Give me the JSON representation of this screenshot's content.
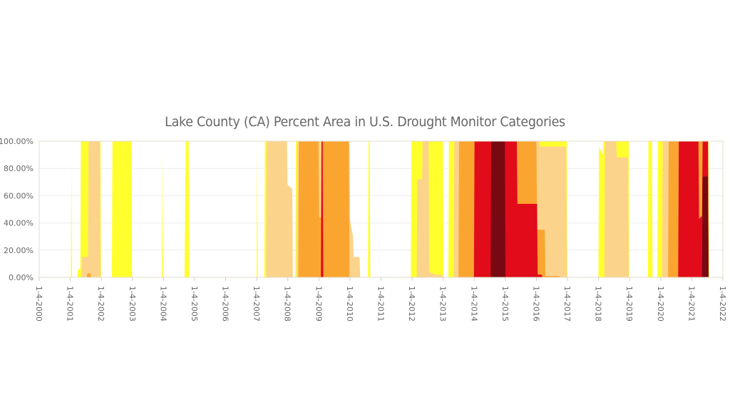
{
  "chart_data": {
    "type": "area",
    "title": "Lake County (CA) Percent Area in U.S. Drought Monitor Categories",
    "xlabel": "",
    "ylabel": "",
    "ylim": [
      0,
      100
    ],
    "y_ticks": [
      "0.00%",
      "20.00%",
      "40.00%",
      "60.00%",
      "80.00%",
      "100.00%"
    ],
    "x_ticks": [
      "1-4-2000",
      "1-4-2001",
      "1-4-2002",
      "1-4-2003",
      "1-4-2004",
      "1-4-2005",
      "1-4-2006",
      "1-4-2007",
      "1-4-2008",
      "1-4-2009",
      "1-4-2010",
      "1-4-2011",
      "1-4-2012",
      "1-4-2013",
      "1-4-2014",
      "1-4-2015",
      "1-4-2016",
      "1-4-2017",
      "1-4-2018",
      "1-4-2019",
      "1-4-2020",
      "1-4-2021",
      "1-4-2022"
    ],
    "x_range": [
      "2000-01-04",
      "2022-01-04"
    ],
    "grid": true,
    "legend": "none",
    "series": [
      {
        "color": "#ffff2e",
        "points": [
          [
            "2000-01-04",
            0
          ],
          [
            "2000-01-20",
            0
          ],
          [
            "2001-01-10",
            0
          ],
          [
            "2001-01-17",
            85
          ],
          [
            "2001-01-24",
            0
          ],
          [
            "2001-03-27",
            0
          ],
          [
            "2001-04-03",
            6
          ],
          [
            "2001-05-01",
            6
          ],
          [
            "2001-05-08",
            100
          ],
          [
            "2001-12-25",
            100
          ],
          [
            "2002-01-01",
            0
          ],
          [
            "2002-05-07",
            0
          ],
          [
            "2002-05-14",
            100
          ],
          [
            "2002-12-24",
            100
          ],
          [
            "2002-12-31",
            0
          ],
          [
            "2003-12-16",
            0
          ],
          [
            "2003-12-23",
            92
          ],
          [
            "2003-12-30",
            0
          ],
          [
            "2004-09-07",
            0
          ],
          [
            "2004-09-14",
            48
          ],
          [
            "2004-09-21",
            100
          ],
          [
            "2004-10-26",
            100
          ],
          [
            "2004-11-02",
            0
          ],
          [
            "2007-01-02",
            0
          ],
          [
            "2007-01-09",
            98
          ],
          [
            "2007-01-16",
            0
          ],
          [
            "2007-04-03",
            0
          ],
          [
            "2007-04-10",
            100
          ],
          [
            "2007-12-25",
            100
          ],
          [
            "2008-01-01",
            0
          ],
          [
            "2008-04-01",
            0
          ],
          [
            "2008-04-08",
            100
          ],
          [
            "2008-10-28",
            100
          ],
          [
            "2008-11-04",
            0
          ],
          [
            "2010-08-03",
            0
          ],
          [
            "2010-08-10",
            100
          ],
          [
            "2010-08-24",
            100
          ],
          [
            "2010-08-31",
            0
          ],
          [
            "2011-12-20",
            0
          ],
          [
            "2011-12-27",
            100
          ],
          [
            "2012-07-03",
            100
          ],
          [
            "2012-07-10",
            100
          ],
          [
            "2013-01-01",
            100
          ],
          [
            "2013-01-08",
            0
          ],
          [
            "2013-03-05",
            0
          ],
          [
            "2013-03-12",
            100
          ],
          [
            "2016-12-27",
            100
          ],
          [
            "2017-01-03",
            0
          ],
          [
            "2018-01-02",
            0
          ],
          [
            "2018-01-09",
            96
          ],
          [
            "2018-02-20",
            90
          ],
          [
            "2018-03-06",
            100
          ],
          [
            "2018-12-25",
            100
          ],
          [
            "2019-01-01",
            0
          ],
          [
            "2019-08-06",
            0
          ],
          [
            "2019-08-13",
            100
          ],
          [
            "2019-09-24",
            100
          ],
          [
            "2019-10-01",
            0
          ],
          [
            "2019-11-26",
            0
          ],
          [
            "2019-12-03",
            100
          ],
          [
            "2021-07-20",
            100
          ],
          [
            "2021-07-27",
            0
          ],
          [
            "2022-01-04",
            0
          ]
        ]
      },
      {
        "color": "#fcd38a",
        "points": [
          [
            "2000-01-04",
            0
          ],
          [
            "2001-05-15",
            0
          ],
          [
            "2001-05-22",
            15
          ],
          [
            "2001-07-31",
            15
          ],
          [
            "2001-08-07",
            100
          ],
          [
            "2001-12-18",
            100
          ],
          [
            "2001-12-25",
            0
          ],
          [
            "2007-04-24",
            0
          ],
          [
            "2007-05-01",
            100
          ],
          [
            "2007-12-25",
            100
          ],
          [
            "2008-01-01",
            68
          ],
          [
            "2008-02-26",
            65
          ],
          [
            "2008-03-04",
            0
          ],
          [
            "2008-04-15",
            0
          ],
          [
            "2008-04-22",
            100
          ],
          [
            "2009-12-29",
            100
          ],
          [
            "2010-01-05",
            42
          ],
          [
            "2010-02-09",
            30
          ],
          [
            "2010-02-16",
            15
          ],
          [
            "2010-04-27",
            15
          ],
          [
            "2010-05-04",
            0
          ],
          [
            "2012-02-28",
            0
          ],
          [
            "2012-03-06",
            72
          ],
          [
            "2012-05-01",
            72
          ],
          [
            "2012-05-08",
            100
          ],
          [
            "2012-07-17",
            100
          ],
          [
            "2012-07-24",
            4
          ],
          [
            "2012-10-02",
            2
          ],
          [
            "2012-12-25",
            2
          ],
          [
            "2013-01-01",
            0
          ],
          [
            "2013-05-07",
            0
          ],
          [
            "2013-05-14",
            100
          ],
          [
            "2016-02-09",
            100
          ],
          [
            "2016-02-16",
            96
          ],
          [
            "2016-12-20",
            96
          ],
          [
            "2016-12-27",
            0
          ],
          [
            "2018-03-13",
            0
          ],
          [
            "2018-03-20",
            100
          ],
          [
            "2018-07-31",
            100
          ],
          [
            "2018-08-07",
            88
          ],
          [
            "2018-12-18",
            88
          ],
          [
            "2018-12-25",
            0
          ],
          [
            "2020-01-21",
            0
          ],
          [
            "2020-01-28",
            100
          ],
          [
            "2021-07-13",
            100
          ],
          [
            "2021-07-20",
            0
          ],
          [
            "2022-01-04",
            0
          ]
        ]
      },
      {
        "color": "#fba531",
        "points": [
          [
            "2000-01-04",
            0
          ],
          [
            "2001-07-17",
            0
          ],
          [
            "2001-07-24",
            3
          ],
          [
            "2001-08-28",
            3
          ],
          [
            "2001-09-04",
            0
          ],
          [
            "2008-05-06",
            0
          ],
          [
            "2008-05-13",
            100
          ],
          [
            "2008-12-30",
            100
          ],
          [
            "2009-01-06",
            44
          ],
          [
            "2009-02-03",
            44
          ],
          [
            "2009-02-10",
            100
          ],
          [
            "2009-12-22",
            100
          ],
          [
            "2009-12-29",
            0
          ],
          [
            "2013-07-02",
            0
          ],
          [
            "2013-07-09",
            100
          ],
          [
            "2016-01-05",
            100
          ],
          [
            "2016-01-12",
            35
          ],
          [
            "2016-04-12",
            35
          ],
          [
            "2016-04-19",
            1
          ],
          [
            "2016-09-27",
            1
          ],
          [
            "2016-10-04",
            0
          ],
          [
            "2020-03-31",
            0
          ],
          [
            "2020-04-07",
            100
          ],
          [
            "2021-07-13",
            100
          ],
          [
            "2021-07-20",
            0
          ],
          [
            "2022-01-04",
            0
          ]
        ]
      },
      {
        "color": "#e10b1a",
        "points": [
          [
            "2000-01-04",
            0
          ],
          [
            "2009-01-27",
            0
          ],
          [
            "2009-02-03",
            100
          ],
          [
            "2009-02-17",
            100
          ],
          [
            "2009-02-24",
            0
          ],
          [
            "2013-12-31",
            0
          ],
          [
            "2014-01-07",
            100
          ],
          [
            "2015-05-19",
            100
          ],
          [
            "2015-05-26",
            54
          ],
          [
            "2016-01-12",
            54
          ],
          [
            "2016-01-19",
            2
          ],
          [
            "2016-03-08",
            2
          ],
          [
            "2016-03-15",
            0
          ],
          [
            "2020-07-28",
            0
          ],
          [
            "2020-08-04",
            100
          ],
          [
            "2021-03-23",
            100
          ],
          [
            "2021-03-30",
            43
          ],
          [
            "2021-05-04",
            45
          ],
          [
            "2021-05-11",
            100
          ],
          [
            "2021-07-13",
            100
          ],
          [
            "2021-07-20",
            0
          ],
          [
            "2022-01-04",
            0
          ]
        ]
      },
      {
        "color": "#780913",
        "points": [
          [
            "2000-01-04",
            0
          ],
          [
            "2014-07-15",
            0
          ],
          [
            "2014-07-22",
            100
          ],
          [
            "2014-12-30",
            100
          ],
          [
            "2015-01-06",
            0
          ],
          [
            "2021-05-04",
            0
          ],
          [
            "2021-05-11",
            74
          ],
          [
            "2021-07-13",
            74
          ],
          [
            "2021-07-20",
            0
          ],
          [
            "2022-01-04",
            0
          ]
        ]
      }
    ]
  }
}
